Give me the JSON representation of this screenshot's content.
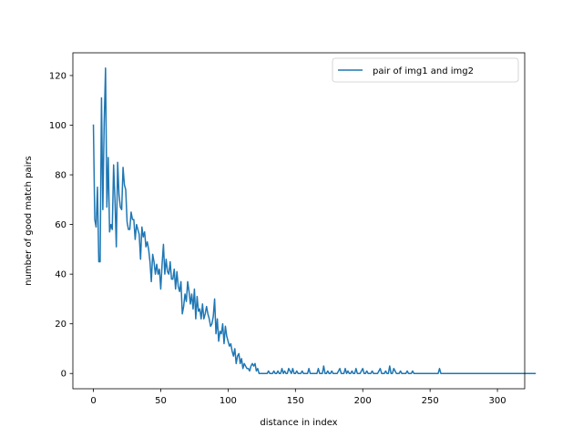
{
  "chart_data": {
    "type": "line",
    "title": "",
    "xlabel": "distance in index",
    "ylabel": "number of good match pairs",
    "xlim": [
      -15.25,
      320.25
    ],
    "ylim": [
      -6.15,
      129.15
    ],
    "xticks": [
      0,
      50,
      100,
      150,
      200,
      250,
      300
    ],
    "yticks": [
      0,
      20,
      40,
      60,
      80,
      100,
      120
    ],
    "grid": false,
    "legend": {
      "placement": "top-right"
    },
    "series": [
      {
        "name": "pair of img1 and img2",
        "color": "#1f77b4",
        "x_start": 0,
        "x_step": 1,
        "values": [
          100,
          62,
          59,
          75,
          45,
          45,
          111,
          66,
          101,
          123,
          67,
          87,
          57,
          60,
          58,
          84,
          70,
          51,
          85,
          72,
          67,
          66,
          83,
          76,
          74,
          61,
          58,
          58,
          65,
          62,
          62,
          54,
          60,
          58,
          56,
          46,
          59,
          55,
          57,
          51,
          53,
          50,
          45,
          37,
          48,
          45,
          40,
          44,
          40,
          42,
          34,
          44,
          52,
          40,
          46,
          41,
          40,
          45,
          38,
          38,
          42,
          34,
          41,
          35,
          33,
          37,
          24,
          27,
          32,
          29,
          37,
          33,
          28,
          32,
          26,
          34,
          22,
          31,
          25,
          26,
          22,
          28,
          22,
          24,
          27,
          24,
          22,
          19,
          20,
          23,
          30,
          16,
          22,
          13,
          17,
          16,
          20,
          12,
          19,
          15,
          13,
          11,
          12,
          9,
          7,
          10,
          4,
          7,
          8,
          4,
          6,
          2,
          4,
          3,
          2,
          2,
          1,
          3,
          4,
          3,
          4,
          1,
          2,
          0,
          0,
          0,
          0,
          0,
          0,
          0,
          1,
          0,
          0,
          0,
          1,
          0,
          0,
          1,
          0,
          0,
          2,
          0,
          1,
          0,
          0,
          2,
          1,
          0,
          2,
          0,
          0,
          1,
          0,
          0,
          0,
          1,
          0,
          0,
          0,
          0,
          2,
          0,
          0,
          0,
          0,
          0,
          0,
          2,
          0,
          0,
          0,
          3,
          0,
          0,
          1,
          0,
          0,
          1,
          0,
          0,
          0,
          0,
          1,
          2,
          0,
          0,
          0,
          2,
          0,
          1,
          0,
          0,
          1,
          0,
          0,
          2,
          0,
          0,
          0,
          1,
          2,
          0,
          0,
          1,
          0,
          0,
          0,
          1,
          0,
          0,
          0,
          0,
          1,
          2,
          0,
          0,
          0,
          1,
          0,
          0,
          3,
          0,
          0,
          2,
          1,
          0,
          0,
          0,
          1,
          0,
          0,
          0,
          0,
          1,
          0,
          0,
          0,
          1,
          0,
          0,
          0,
          0,
          0,
          0,
          0,
          0,
          0,
          0,
          0,
          0,
          0,
          0,
          0,
          0,
          0,
          0,
          0,
          2,
          0,
          0,
          0,
          0,
          0,
          0,
          0,
          0,
          0,
          0,
          0,
          0,
          0,
          0,
          0,
          0,
          0,
          0,
          0,
          0,
          0,
          0,
          0,
          0,
          0,
          0,
          0,
          0,
          0,
          0,
          0,
          0,
          0,
          0,
          0,
          0,
          0,
          0,
          0,
          0,
          0,
          0,
          0,
          0,
          0,
          0,
          0,
          0,
          0,
          0,
          0,
          0,
          0,
          0,
          0,
          0,
          0,
          0,
          0,
          0,
          0,
          0,
          0,
          0,
          0,
          0,
          0,
          0,
          0,
          0,
          0
        ]
      }
    ]
  }
}
